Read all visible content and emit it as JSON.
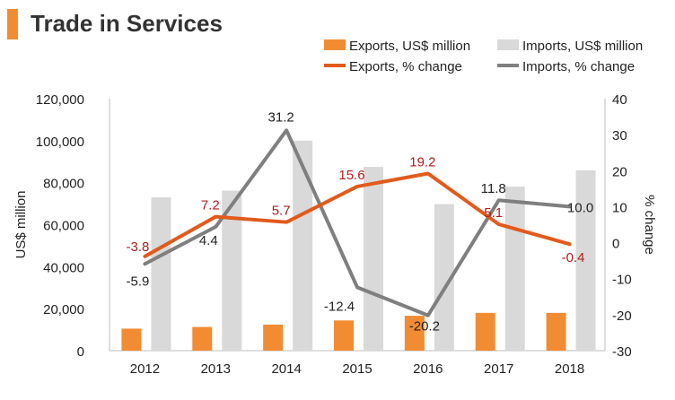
{
  "page": {
    "title": "Trade in Services"
  },
  "chart_data": {
    "type": "bar",
    "title": "Trade in Services",
    "categories": [
      "2012",
      "2013",
      "2014",
      "2015",
      "2016",
      "2017",
      "2018"
    ],
    "ylabel": "US$ million",
    "y2label": "% change",
    "ylim": [
      0,
      120000
    ],
    "y2lim": [
      -30,
      40
    ],
    "yticks": [
      "0",
      "20,000",
      "40,000",
      "60,000",
      "80,000",
      "100,000",
      "120,000"
    ],
    "y2ticks": [
      "-30",
      "-20",
      "-10",
      "0",
      "10",
      "20",
      "30",
      "40"
    ],
    "colors": {
      "exports": "#f28c33",
      "imports": "#d9d9d9",
      "exports_line": "#e25a1c",
      "imports_line": "#7f7f7f",
      "exports_label": "#b01e1e",
      "imports_label": "#222222"
    },
    "legend": {
      "exports_bar": "Exports, US$ million",
      "imports_bar": "Imports, US$ million",
      "exports_line": "Exports, % change",
      "imports_line": "Imports, % change"
    },
    "series": [
      {
        "name": "Exports, US$ million",
        "kind": "bar",
        "axis": "left",
        "values": [
          10500,
          11300,
          12400,
          14400,
          16600,
          18000,
          18000
        ]
      },
      {
        "name": "Imports, US$ million",
        "kind": "bar",
        "axis": "left",
        "values": [
          73000,
          76200,
          100000,
          87500,
          69800,
          78100,
          85900
        ]
      },
      {
        "name": "Exports, % change",
        "kind": "line",
        "axis": "right",
        "values": [
          -3.8,
          7.2,
          5.7,
          15.6,
          19.2,
          5.1,
          -0.4
        ],
        "labels": [
          "-3.8",
          "7.2",
          "5.7",
          "15.6",
          "19.2",
          "5.1",
          "-0.4"
        ]
      },
      {
        "name": "Imports, % change",
        "kind": "line",
        "axis": "right",
        "values": [
          -5.9,
          4.4,
          31.2,
          -12.4,
          -20.2,
          11.8,
          10.0
        ],
        "labels": [
          "-5.9",
          "4.4",
          "31.2",
          "-12.4",
          "-20.2",
          "11.8",
          "10.0"
        ]
      }
    ]
  }
}
